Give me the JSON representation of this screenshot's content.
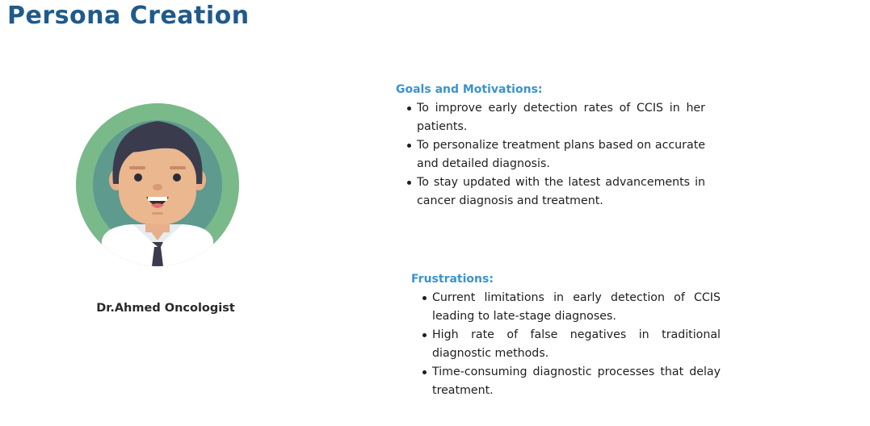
{
  "header": {
    "title": "Persona Creation"
  },
  "persona": {
    "name": "Dr.Ahmed Oncologist"
  },
  "goals": {
    "heading": "Goals and Motivations:",
    "items": [
      "To improve early detection rates of CCIS in her patients.",
      "To personalize treatment plans based on accurate and detailed diagnosis.",
      "To stay updated with the latest advancements in cancer diagnosis and treatment."
    ]
  },
  "frustrations": {
    "heading": "Frustrations:",
    "items": [
      "Current limitations in early detection of CCIS leading to late-stage diagnoses.",
      "High rate of false negatives in traditional diagnostic methods.",
      "Time-consuming diagnostic processes that delay treatment."
    ]
  },
  "colors": {
    "title": "#1f5a8c",
    "heading": "#3a93d1",
    "avatar_ring": "#7ab98a",
    "avatar_bg": "#5f9a8e"
  }
}
